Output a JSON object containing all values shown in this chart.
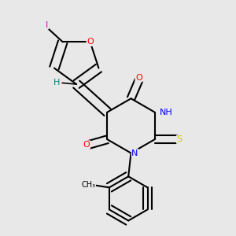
{
  "bg_color": "#e8e8e8",
  "atom_colors": {
    "C": "#000000",
    "N": "#0000ff",
    "O": "#ff0000",
    "S": "#cccc00",
    "I": "#cc00cc",
    "H": "#008080"
  },
  "bond_color": "#000000",
  "figsize": [
    3.0,
    3.0
  ],
  "dpi": 100
}
